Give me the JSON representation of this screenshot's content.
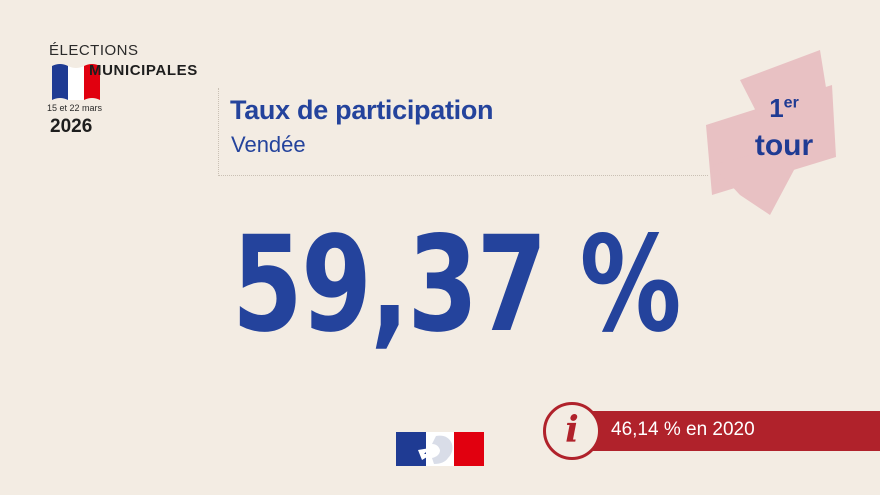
{
  "logo": {
    "line1": "ÉLECTIONS",
    "line2": "MUNICIPALES",
    "dates": "15 et 22 mars",
    "year": "2026",
    "flag_colors": [
      "#1f3b93",
      "#ffffff",
      "#e1000f"
    ]
  },
  "header": {
    "title": "Taux de participation",
    "subtitle": "Vendée"
  },
  "round": {
    "number": "1",
    "suffix": "er",
    "label": "tour",
    "badge_color": "#e8c1c3"
  },
  "main": {
    "value": "59,37 %"
  },
  "comparison": {
    "icon": "info-icon",
    "icon_glyph": "i",
    "text": "46,14 % en 2020",
    "color": "#b0222b"
  },
  "colors": {
    "background": "#f3ece3",
    "primary_blue": "#24439c"
  }
}
